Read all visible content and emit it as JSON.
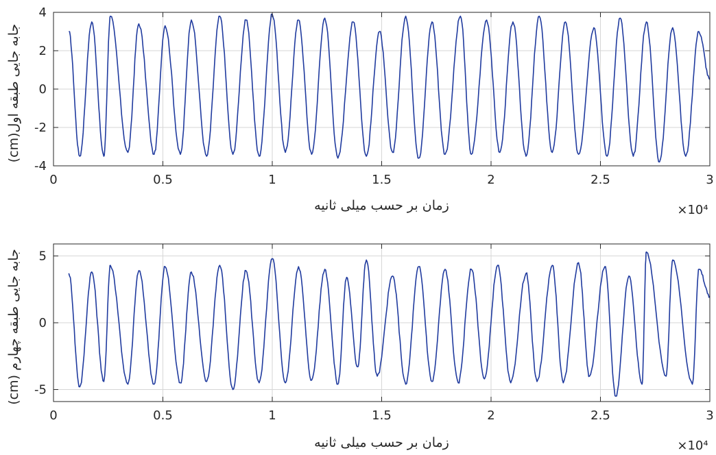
{
  "chart_data": [
    {
      "type": "line",
      "xlabel": "زمان بر حسب میلی ثانیه",
      "ylabel": "جابه جایی طبقه اول(cm)",
      "x_exponent_label": "×10⁴",
      "xlim": [
        0,
        30000
      ],
      "ylim": [
        -4,
        4
      ],
      "xticks": [
        0,
        5000,
        10000,
        15000,
        20000,
        25000,
        30000
      ],
      "xtick_labels": [
        "0",
        "0.5",
        "1",
        "1.5",
        "2",
        "2.5",
        "3"
      ],
      "yticks": [
        -4,
        -2,
        0,
        2,
        4
      ],
      "ytick_labels": [
        "-4",
        "-2",
        "0",
        "2",
        "4"
      ],
      "grid": true,
      "series": [
        {
          "color": "#1f3a9e",
          "x_start": 700,
          "x_end": 30000,
          "peaks_x": [
            1750,
            2600,
            3900,
            5100,
            6300,
            7600,
            8800,
            10000,
            11200,
            12400,
            13700,
            14900,
            16100,
            17300,
            18600,
            19800,
            21000,
            22200,
            23400,
            24700,
            25900,
            27100,
            28300,
            29500
          ],
          "peaks_y": [
            3.5,
            3.8,
            3.4,
            3.3,
            3.6,
            3.8,
            3.6,
            3.9,
            3.6,
            3.7,
            3.5,
            3.0,
            3.8,
            3.5,
            3.8,
            3.6,
            3.5,
            3.8,
            3.5,
            3.2,
            3.7,
            3.5,
            3.2,
            3.0
          ],
          "troughs_x": [
            1200,
            2300,
            3400,
            4600,
            5800,
            7000,
            8200,
            9400,
            10600,
            11800,
            13000,
            14300,
            15500,
            16700,
            17900,
            19100,
            20400,
            21600,
            22800,
            24000,
            25300,
            26500,
            27700,
            28900
          ],
          "troughs_y": [
            -3.5,
            -3.5,
            -3.3,
            -3.4,
            -3.4,
            -3.5,
            -3.4,
            -3.5,
            -3.3,
            -3.4,
            -3.6,
            -3.5,
            -3.3,
            -3.6,
            -3.4,
            -3.4,
            -3.3,
            -3.5,
            -3.3,
            -3.4,
            -3.5,
            -3.5,
            -3.8,
            -3.5
          ],
          "y_start": 3.0,
          "y_end": 0.5
        }
      ]
    },
    {
      "type": "line",
      "xlabel": "زمان بر حسب میلی ثانیه",
      "ylabel": "جابه جایی طبقه چهارم (cm)",
      "x_exponent_label": "×10⁴",
      "xlim": [
        0,
        30000
      ],
      "ylim": [
        -5.9,
        5.9
      ],
      "xticks": [
        0,
        5000,
        10000,
        15000,
        20000,
        25000,
        30000
      ],
      "xtick_labels": [
        "0",
        "0.5",
        "1",
        "1.5",
        "2",
        "2.5",
        "3"
      ],
      "yticks": [
        -5,
        0,
        5
      ],
      "ytick_labels": [
        "-5",
        "0",
        "5"
      ],
      "grid": true,
      "series": [
        {
          "color": "#1f3a9e",
          "x_start": 700,
          "x_end": 30000,
          "peaks_x": [
            1750,
            2600,
            3900,
            5100,
            6300,
            7600,
            8800,
            10000,
            11200,
            12400,
            13400,
            14300,
            15500,
            16700,
            17900,
            19100,
            20300,
            21600,
            22800,
            24000,
            25200,
            26300,
            27100,
            28300,
            29500
          ],
          "peaks_y": [
            3.8,
            4.3,
            3.9,
            4.2,
            3.8,
            4.3,
            3.9,
            4.8,
            4.2,
            4.0,
            3.4,
            4.7,
            3.5,
            4.2,
            4.0,
            4.0,
            4.3,
            3.7,
            4.3,
            4.5,
            4.2,
            3.5,
            5.3,
            4.7,
            4.0
          ],
          "troughs_x": [
            1200,
            2300,
            3400,
            4600,
            5800,
            7000,
            8200,
            9400,
            10600,
            11800,
            13000,
            13900,
            14800,
            16100,
            17300,
            18500,
            19700,
            20900,
            22100,
            23300,
            24500,
            25700,
            26900,
            28000,
            29200
          ],
          "troughs_y": [
            -4.8,
            -4.4,
            -4.6,
            -4.6,
            -4.5,
            -4.4,
            -5.0,
            -4.5,
            -4.5,
            -4.3,
            -4.6,
            -3.3,
            -4.0,
            -4.6,
            -4.4,
            -4.5,
            -4.2,
            -4.5,
            -4.4,
            -4.5,
            -4.0,
            -5.5,
            -4.6,
            -4.0,
            -4.6
          ],
          "y_start": 3.7,
          "y_end": 2.0
        }
      ]
    }
  ]
}
